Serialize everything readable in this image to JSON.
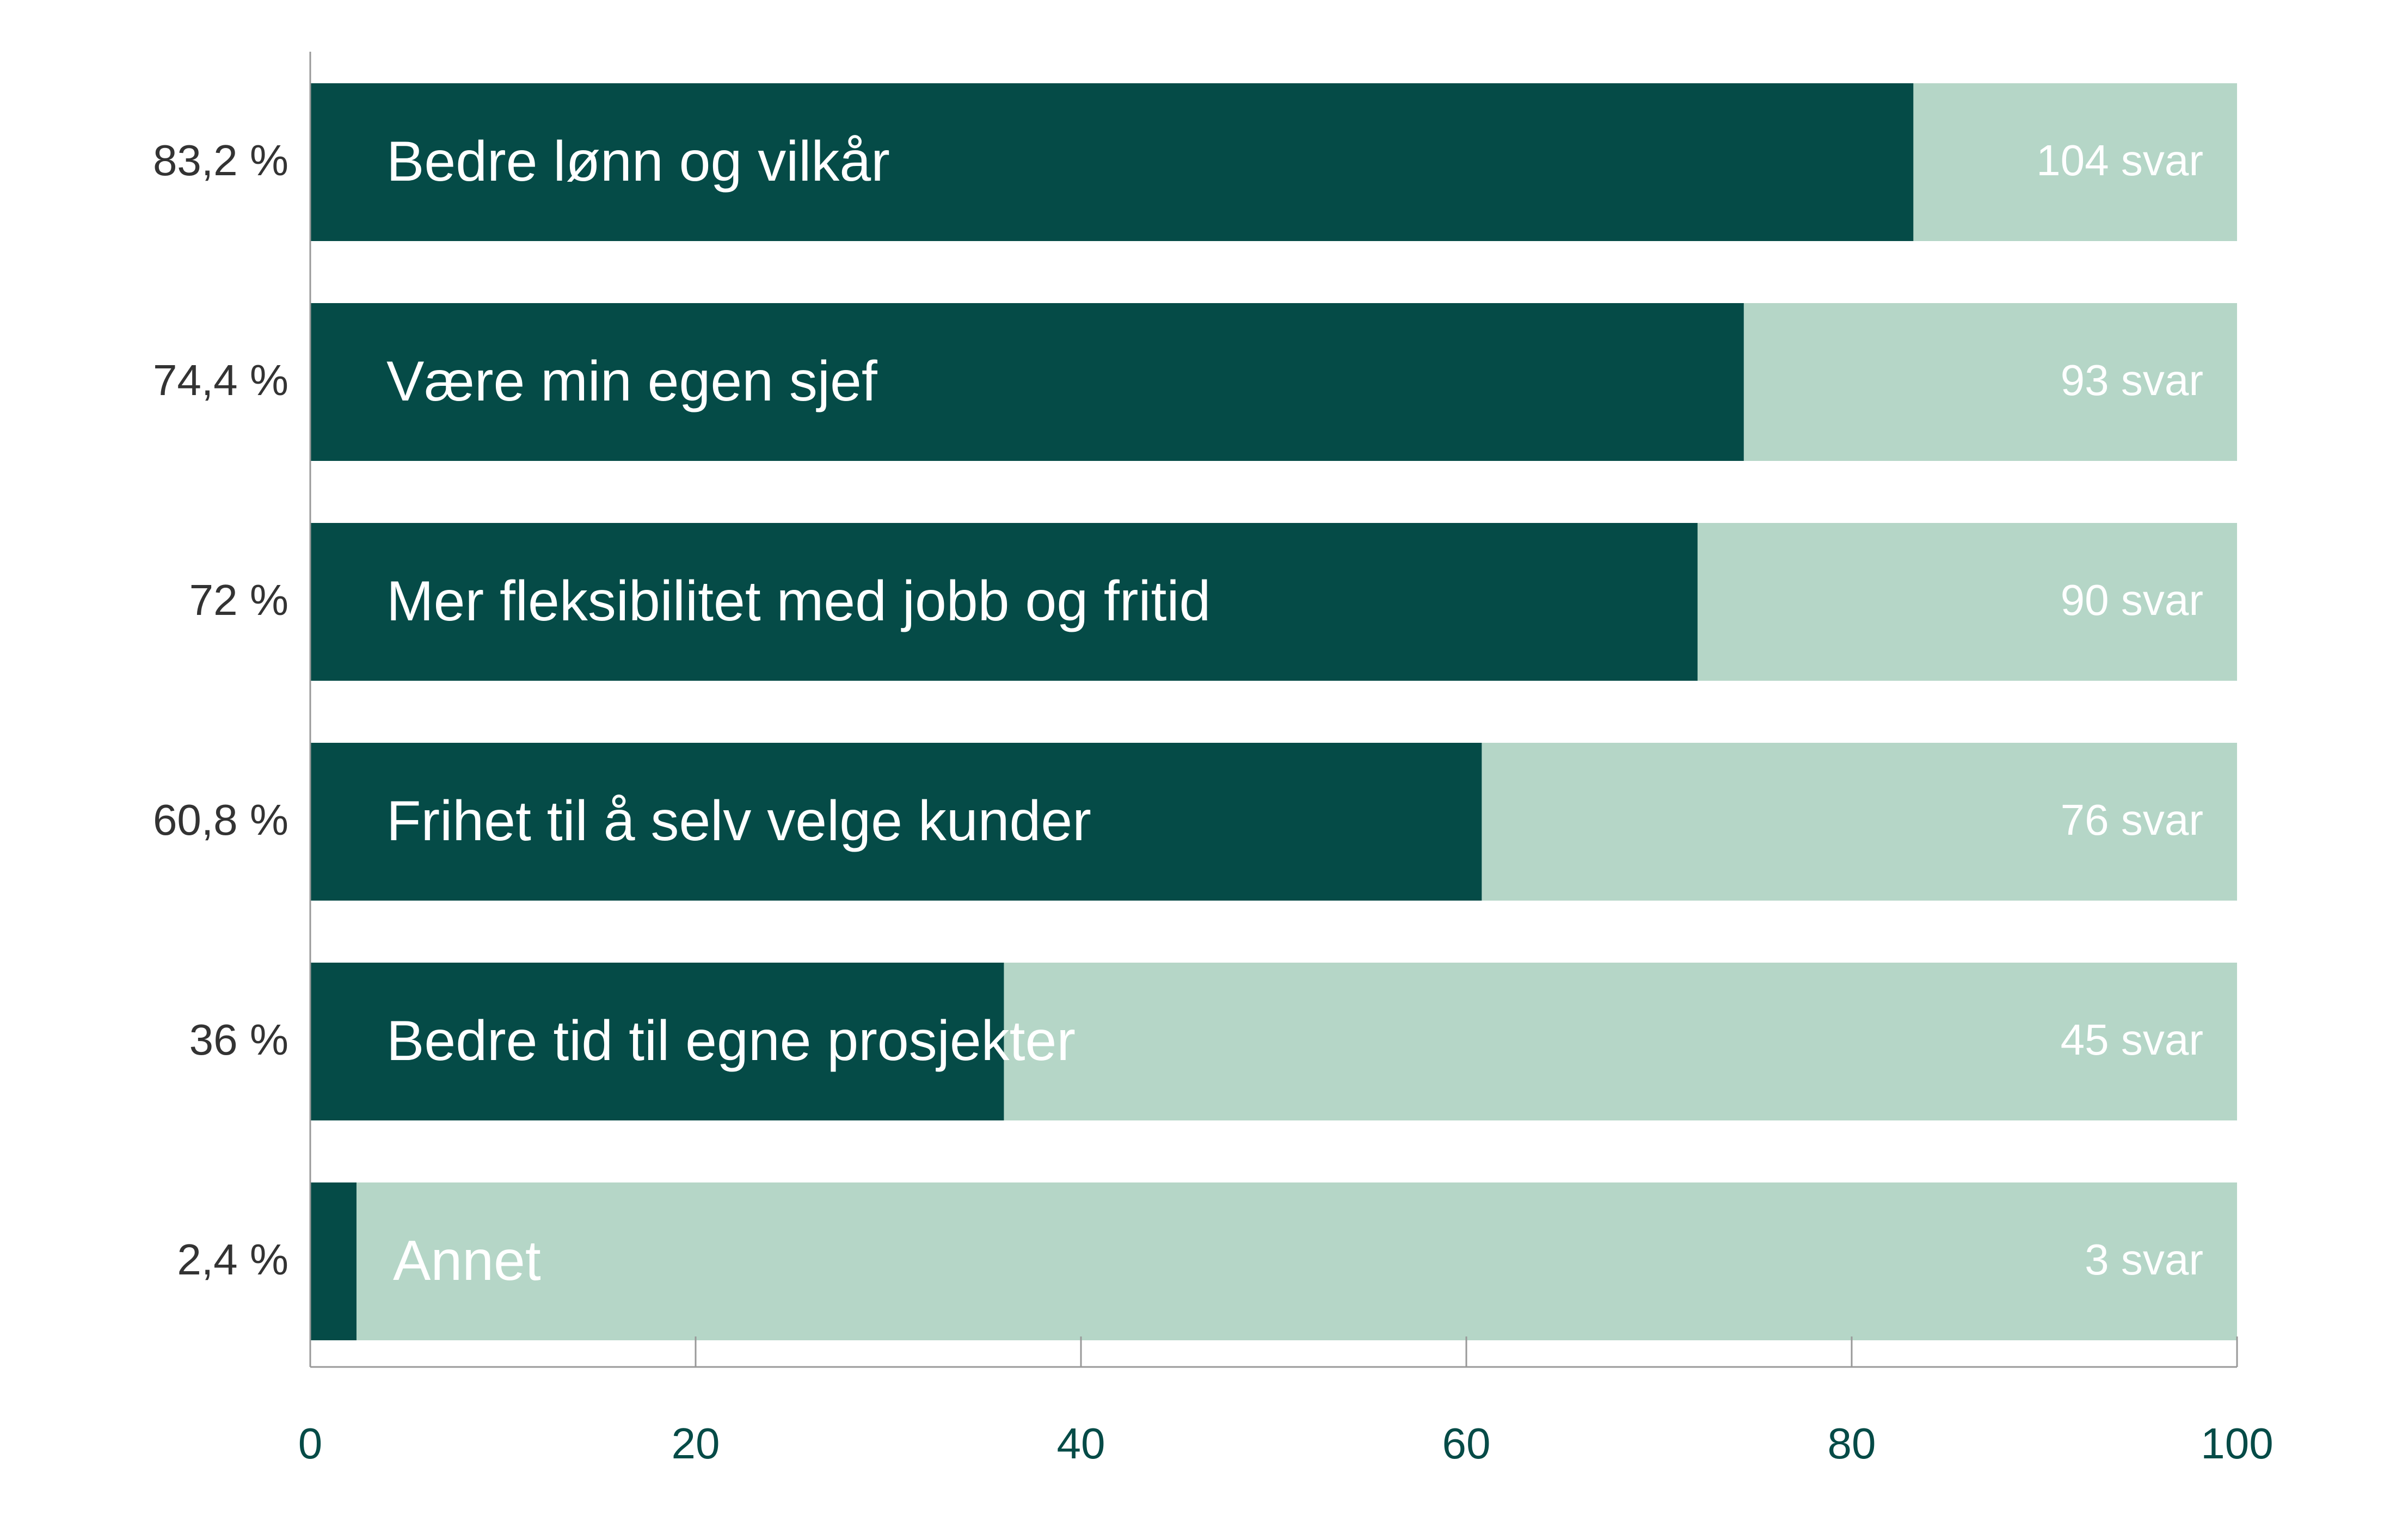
{
  "chart_data": {
    "type": "bar",
    "orientation": "horizontal",
    "title": "",
    "xlabel": "",
    "ylabel": "",
    "xlim": [
      0,
      100
    ],
    "x_ticks": [
      0,
      20,
      40,
      60,
      80,
      100
    ],
    "grid": false,
    "categories": [
      "Bedre lønn og vilkår",
      "Være min egen sjef",
      "Mer fleksibilitet med jobb og fritid",
      "Frihet til å selv velge kunder",
      "Bedre tid til egne prosjekter",
      "Annet"
    ],
    "values": [
      83.2,
      74.4,
      72,
      60.8,
      36,
      2.4
    ],
    "percent_labels": [
      "83,2 %",
      "74,4 %",
      "72 %",
      "60,8 %",
      "36 %",
      "2,4 %"
    ],
    "count_labels": [
      "104 svar",
      "93 svar",
      "90 svar",
      "76 svar",
      "45 svar",
      "3 svar"
    ],
    "colors": {
      "bar": "#054b47",
      "track": "#b5d6c7",
      "bar_text": "#ffffff",
      "count_text": "#ffffff",
      "percent_text": "#333333",
      "tick_text": "#054b47",
      "axis": "#999999"
    }
  }
}
